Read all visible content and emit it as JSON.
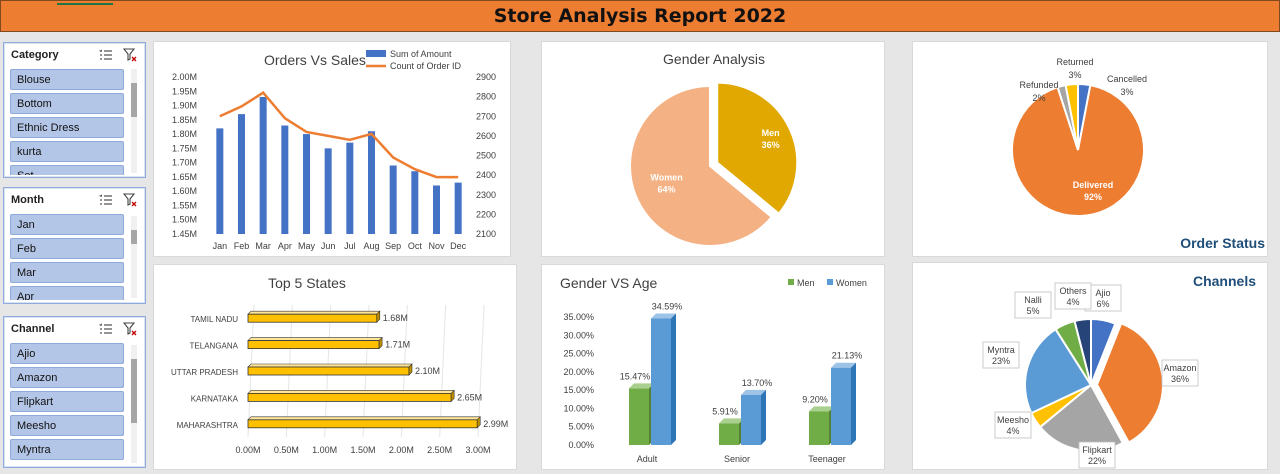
{
  "report": {
    "title": "Store Analysis Report 2022"
  },
  "slicers": {
    "category": {
      "label": "Category",
      "items": [
        "Blouse",
        "Bottom",
        "Ethnic Dress",
        "kurta",
        "Set"
      ]
    },
    "month": {
      "label": "Month",
      "items": [
        "Jan",
        "Feb",
        "Mar",
        "Apr"
      ]
    },
    "channel": {
      "label": "Channel",
      "items": [
        "Ajio",
        "Amazon",
        "Flipkart",
        "Meesho",
        "Myntra"
      ]
    }
  },
  "icons": {
    "multiselect": "multi-select-icon",
    "clearfilter": "clear-filter-icon"
  },
  "colors": {
    "orange": "#ed7d31",
    "blue": "#4472c4",
    "gold": "#e0a800",
    "peach": "#f4b183",
    "green": "#70ad47",
    "lightblue": "#5b9bd5",
    "yellow": "#ffc000",
    "gray": "#a5a5a5",
    "navy": "#264478",
    "title_blue": "#1f4e79"
  },
  "chart_data": [
    {
      "id": "orders_vs_sales",
      "type": "bar",
      "title": "Orders Vs Sales",
      "categories": [
        "Jan",
        "Feb",
        "Mar",
        "Apr",
        "May",
        "Jun",
        "Jul",
        "Aug",
        "Sep",
        "Oct",
        "Nov",
        "Dec"
      ],
      "series": [
        {
          "name": "Sum of Amount",
          "type": "bar",
          "axis": "left",
          "values": [
            1.82,
            1.87,
            1.93,
            1.83,
            1.8,
            1.75,
            1.77,
            1.81,
            1.69,
            1.67,
            1.62,
            1.63
          ]
        },
        {
          "name": "Count of Order ID",
          "type": "line",
          "axis": "right",
          "values": [
            2700,
            2750,
            2820,
            2690,
            2620,
            2600,
            2580,
            2610,
            2490,
            2430,
            2390,
            2390
          ]
        }
      ],
      "y_left": {
        "min": 1.45,
        "max": 2.0,
        "ticks": [
          "1.45M",
          "1.50M",
          "1.55M",
          "1.60M",
          "1.65M",
          "1.70M",
          "1.75M",
          "1.80M",
          "1.85M",
          "1.90M",
          "1.95M",
          "2.00M"
        ]
      },
      "y_right": {
        "min": 2100,
        "max": 2900,
        "ticks": [
          "2100",
          "2200",
          "2300",
          "2400",
          "2500",
          "2600",
          "2700",
          "2800",
          "2900"
        ]
      },
      "legend": "top-right"
    },
    {
      "id": "gender_analysis",
      "type": "pie",
      "title": "Gender Analysis",
      "slices": [
        {
          "label": "Men",
          "pct_label": "36%",
          "value": 36
        },
        {
          "label": "Women",
          "pct_label": "64%",
          "value": 64
        }
      ]
    },
    {
      "id": "order_status",
      "type": "pie",
      "title": "Order Status",
      "slices": [
        {
          "label": "Cancelled",
          "pct_label": "3%",
          "value": 3
        },
        {
          "label": "Delivered",
          "pct_label": "92%",
          "value": 92
        },
        {
          "label": "Refunded",
          "pct_label": "2%",
          "value": 2
        },
        {
          "label": "Returned",
          "pct_label": "3%",
          "value": 3
        }
      ]
    },
    {
      "id": "top5_states",
      "type": "bar",
      "orientation": "horizontal",
      "title": "Top 5 States",
      "categories": [
        "TAMIL NADU",
        "TELANGANA",
        "UTTAR PRADESH",
        "KARNATAKA",
        "MAHARASHTRA"
      ],
      "values": [
        1.68,
        1.71,
        2.1,
        2.65,
        2.99
      ],
      "value_labels": [
        "1.68M",
        "1.71M",
        "2.10M",
        "2.65M",
        "2.99M"
      ],
      "x_ticks": [
        "0.00M",
        "0.50M",
        "1.00M",
        "1.50M",
        "2.00M",
        "2.50M",
        "3.00M"
      ],
      "xlim": [
        0,
        3.0
      ]
    },
    {
      "id": "gender_vs_age",
      "type": "bar",
      "title": "Gender VS Age",
      "categories": [
        "Adult",
        "Senior",
        "Teenager"
      ],
      "series": [
        {
          "name": "Men",
          "values": [
            15.47,
            5.91,
            9.2
          ],
          "labels": [
            "15.47%",
            "5.91%",
            "9.20%"
          ]
        },
        {
          "name": "Women",
          "values": [
            34.59,
            13.7,
            21.13
          ],
          "labels": [
            "34.59%",
            "13.70%",
            "21.13%"
          ]
        }
      ],
      "y_ticks": [
        "0.00%",
        "5.00%",
        "10.00%",
        "15.00%",
        "20.00%",
        "25.00%",
        "30.00%",
        "35.00%"
      ],
      "ylim": [
        0,
        35
      ],
      "legend": "top-right"
    },
    {
      "id": "channels",
      "type": "pie",
      "title": "Channels",
      "slices": [
        {
          "label": "Ajio",
          "pct_label": "6%",
          "value": 6
        },
        {
          "label": "Amazon",
          "pct_label": "36%",
          "value": 36
        },
        {
          "label": "Flipkart",
          "pct_label": "22%",
          "value": 22
        },
        {
          "label": "Meesho",
          "pct_label": "4%",
          "value": 4
        },
        {
          "label": "Myntra",
          "pct_label": "23%",
          "value": 23
        },
        {
          "label": "Nalli",
          "pct_label": "5%",
          "value": 5
        },
        {
          "label": "Others",
          "pct_label": "4%",
          "value": 4
        }
      ]
    }
  ]
}
